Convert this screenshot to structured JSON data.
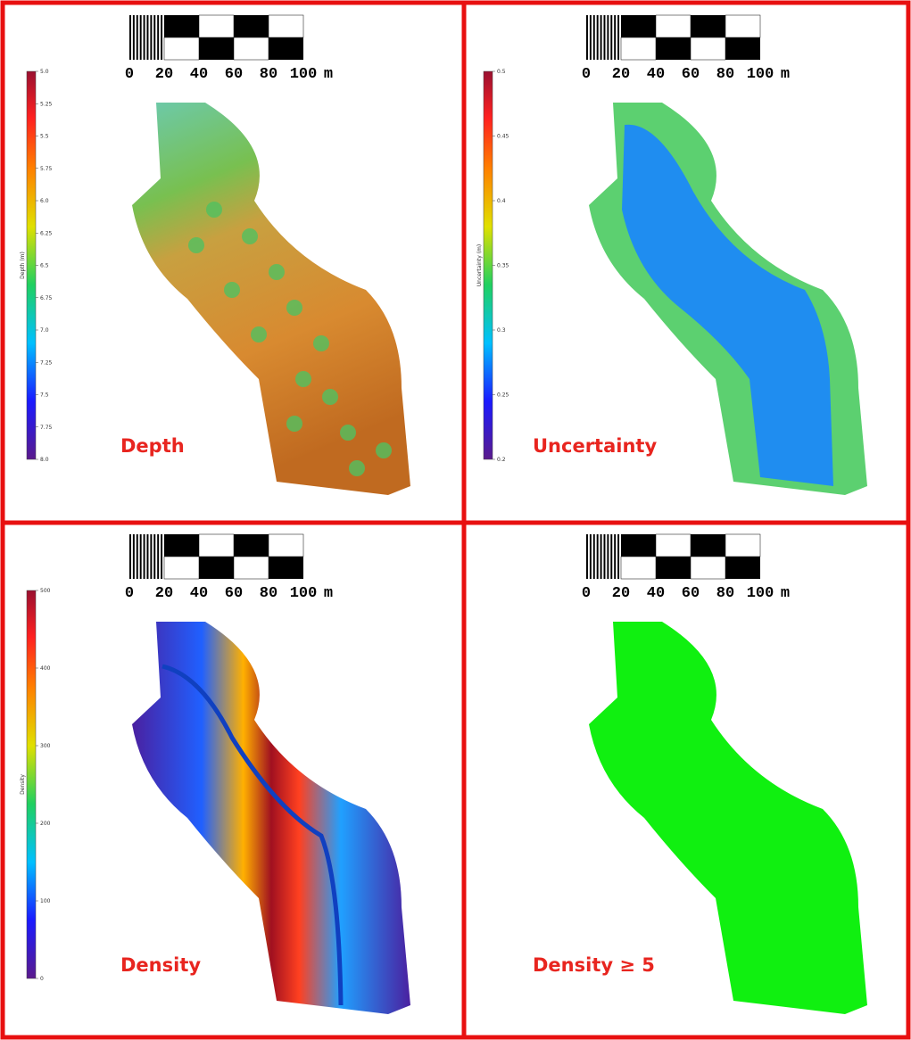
{
  "panels": [
    {
      "label": "Depth",
      "scale_bar": {
        "ticks": [
          "0",
          "20",
          "40",
          "60",
          "80",
          "100"
        ],
        "unit": "m"
      },
      "colorbar": {
        "title": "Depth (m)",
        "ticks": [
          "5.0",
          "5.25",
          "5.5",
          "5.75",
          "6.0",
          "6.25",
          "6.5",
          "6.75",
          "7.0",
          "7.25",
          "7.5",
          "7.75",
          "8.0"
        ]
      }
    },
    {
      "label": "Uncertainty",
      "scale_bar": {
        "ticks": [
          "0",
          "20",
          "40",
          "60",
          "80",
          "100"
        ],
        "unit": "m"
      },
      "colorbar": {
        "title": "Uncertainty (m)",
        "ticks": [
          "0.5",
          "0.45",
          "0.4",
          "0.35",
          "0.3",
          "0.25",
          "0.2"
        ]
      }
    },
    {
      "label": "Density",
      "scale_bar": {
        "ticks": [
          "0",
          "20",
          "40",
          "60",
          "80",
          "100"
        ],
        "unit": "m"
      },
      "colorbar": {
        "title": "Density",
        "ticks": [
          "500",
          "400",
          "300",
          "200",
          "100",
          "0"
        ]
      }
    },
    {
      "label": "Density ≥ 5",
      "scale_bar": {
        "ticks": [
          "0",
          "20",
          "40",
          "60",
          "80",
          "100"
        ],
        "unit": "m"
      }
    }
  ]
}
